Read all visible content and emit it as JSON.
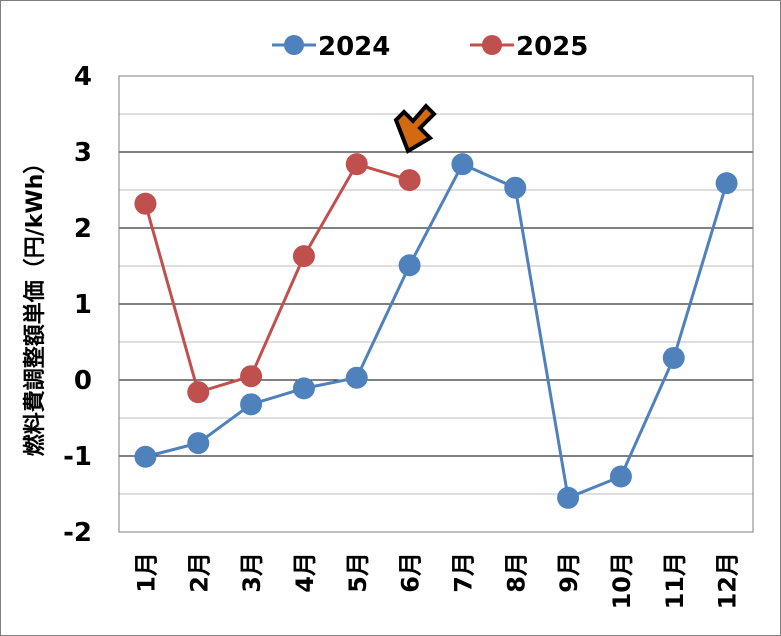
{
  "chart_data": {
    "type": "line",
    "categories": [
      "1月",
      "2月",
      "3月",
      "4月",
      "5月",
      "6月",
      "7月",
      "8月",
      "9月",
      "10月",
      "11月",
      "12月"
    ],
    "series": [
      {
        "name": "2024",
        "color": "#4f81bd",
        "values": [
          -1.01,
          -0.83,
          -0.32,
          -0.11,
          0.03,
          1.51,
          2.84,
          2.53,
          -1.55,
          -1.27,
          0.29,
          2.59
        ]
      },
      {
        "name": "2025",
        "color": "#c0504d",
        "values": [
          2.32,
          -0.16,
          0.05,
          1.63,
          2.84,
          2.63,
          null,
          null,
          null,
          null,
          null,
          null
        ]
      }
    ],
    "ylabel": "燃料費調整額単価（円/kWh）",
    "ylim": [
      -2,
      4
    ],
    "yticks": [
      -2,
      -1,
      0,
      1,
      2,
      3,
      4
    ],
    "grid": "major and minor horizontal",
    "legend": "top",
    "annotation": {
      "type": "arrow",
      "color": "#d46a10",
      "points_to": "6月 2025"
    }
  }
}
